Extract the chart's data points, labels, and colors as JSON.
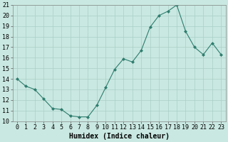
{
  "x": [
    0,
    1,
    2,
    3,
    4,
    5,
    6,
    7,
    8,
    9,
    10,
    11,
    12,
    13,
    14,
    15,
    16,
    17,
    18,
    19,
    20,
    21,
    22,
    23
  ],
  "y": [
    14,
    13.3,
    13,
    12.1,
    11.2,
    11.1,
    10.5,
    10.4,
    10.4,
    11.5,
    13.2,
    14.9,
    15.9,
    15.6,
    16.7,
    18.9,
    20.0,
    20.4,
    21.0,
    18.5,
    17.0,
    16.3,
    17.4,
    16.3
  ],
  "line_color": "#2e7d6e",
  "marker": "D",
  "marker_size": 2.0,
  "bg_color": "#c9e8e1",
  "grid_color": "#a8cfc7",
  "xlabel": "Humidex (Indice chaleur)",
  "xlabel_fontsize": 7,
  "tick_fontsize": 6,
  "ylim": [
    10,
    21
  ],
  "xlim": [
    -0.5,
    23.5
  ],
  "yticks": [
    10,
    11,
    12,
    13,
    14,
    15,
    16,
    17,
    18,
    19,
    20,
    21
  ],
  "xticks": [
    0,
    1,
    2,
    3,
    4,
    5,
    6,
    7,
    8,
    9,
    10,
    11,
    12,
    13,
    14,
    15,
    16,
    17,
    18,
    19,
    20,
    21,
    22,
    23
  ]
}
